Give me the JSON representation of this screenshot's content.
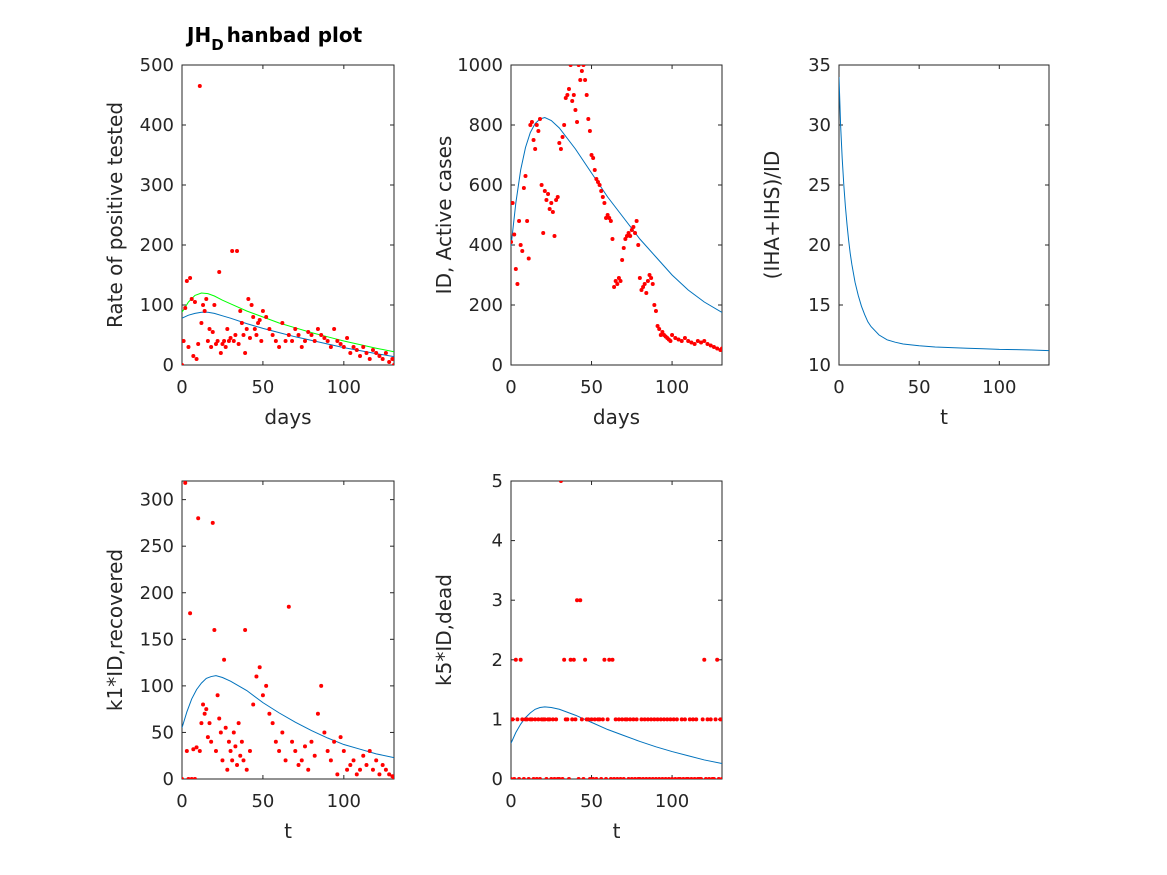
{
  "figure": {
    "title_main": "JH",
    "title_sub": "D",
    "title_rest": "hanbad plot"
  },
  "colors": {
    "points": "#ff0000",
    "fit": "#0072bd",
    "fit2": "#00ff00",
    "axis": "#262626"
  },
  "chart_data": [
    {
      "id": "p1",
      "type": "scatter",
      "xlabel": "days",
      "ylabel": "Rate of positive tested",
      "xlim": [
        0,
        131
      ],
      "ylim": [
        0,
        500
      ],
      "xticks": [
        0,
        50,
        100
      ],
      "yticks": [
        0,
        100,
        200,
        300,
        400,
        500
      ],
      "curves": [
        {
          "color": "#00ff00",
          "x": [
            0,
            4,
            8,
            12,
            16,
            20,
            25,
            30,
            40,
            50,
            60,
            70,
            80,
            90,
            100,
            110,
            120,
            131
          ],
          "y": [
            88,
            105,
            116,
            120,
            119,
            115,
            108,
            102,
            90,
            80,
            70,
            62,
            54,
            47,
            40,
            34,
            28,
            22
          ]
        },
        {
          "color": "#0072bd",
          "x": [
            0,
            4,
            8,
            12,
            16,
            20,
            25,
            30,
            40,
            50,
            60,
            70,
            80,
            90,
            100,
            110,
            120,
            131
          ],
          "y": [
            78,
            83,
            86,
            88,
            88,
            86,
            82,
            78,
            69,
            61,
            54,
            47,
            41,
            35,
            29,
            24,
            19,
            14
          ]
        }
      ],
      "points": {
        "x": [
          0,
          1,
          2,
          3,
          4,
          5,
          6,
          7,
          8,
          9,
          10,
          11,
          12,
          13,
          14,
          15,
          16,
          17,
          18,
          19,
          20,
          21,
          22,
          23,
          24,
          25,
          26,
          27,
          28,
          29,
          30,
          31,
          32,
          33,
          34,
          35,
          36,
          37,
          38,
          39,
          40,
          41,
          42,
          43,
          44,
          45,
          46,
          47,
          48,
          49,
          50,
          52,
          54,
          56,
          58,
          60,
          62,
          64,
          66,
          68,
          70,
          72,
          74,
          76,
          78,
          80,
          82,
          84,
          86,
          88,
          90,
          92,
          94,
          96,
          98,
          100,
          102,
          104,
          106,
          108,
          110,
          112,
          114,
          116,
          118,
          120,
          122,
          124,
          126,
          128,
          130,
          131
        ],
        "y": [
          0,
          40,
          95,
          140,
          30,
          145,
          110,
          15,
          105,
          10,
          35,
          465,
          70,
          100,
          90,
          110,
          40,
          60,
          30,
          55,
          100,
          35,
          40,
          155,
          20,
          35,
          40,
          30,
          60,
          40,
          45,
          190,
          40,
          50,
          190,
          35,
          90,
          70,
          50,
          20,
          60,
          110,
          45,
          100,
          80,
          60,
          50,
          70,
          75,
          40,
          90,
          80,
          60,
          50,
          40,
          30,
          70,
          40,
          50,
          40,
          60,
          50,
          30,
          40,
          55,
          50,
          40,
          60,
          50,
          45,
          40,
          30,
          60,
          40,
          35,
          30,
          45,
          20,
          30,
          25,
          15,
          30,
          20,
          10,
          25,
          20,
          15,
          10,
          20,
          5,
          10,
          0
        ]
      }
    },
    {
      "id": "p2",
      "type": "scatter",
      "xlabel": "days",
      "ylabel": "ID, Active cases",
      "xlim": [
        0,
        131
      ],
      "ylim": [
        0,
        1000
      ],
      "xticks": [
        0,
        50,
        100
      ],
      "yticks": [
        0,
        200,
        400,
        600,
        800,
        1000
      ],
      "curves": [
        {
          "color": "#0072bd",
          "x": [
            0,
            3,
            6,
            9,
            12,
            15,
            18,
            21,
            25,
            30,
            40,
            50,
            60,
            70,
            80,
            90,
            100,
            110,
            120,
            131
          ],
          "y": [
            395,
            540,
            650,
            725,
            775,
            805,
            820,
            825,
            815,
            790,
            720,
            640,
            560,
            490,
            420,
            360,
            300,
            250,
            210,
            175
          ]
        }
      ],
      "points": {
        "x": [
          0,
          1,
          2,
          3,
          4,
          5,
          6,
          7,
          8,
          9,
          10,
          11,
          12,
          13,
          14,
          15,
          16,
          17,
          18,
          19,
          20,
          21,
          22,
          23,
          24,
          25,
          26,
          27,
          28,
          29,
          30,
          31,
          32,
          33,
          34,
          35,
          36,
          37,
          38,
          39,
          40,
          41,
          42,
          43,
          44,
          45,
          46,
          47,
          48,
          49,
          50,
          51,
          52,
          53,
          54,
          55,
          56,
          57,
          58,
          59,
          60,
          61,
          62,
          63,
          64,
          65,
          66,
          67,
          68,
          69,
          70,
          71,
          72,
          73,
          74,
          75,
          76,
          77,
          78,
          79,
          80,
          81,
          82,
          83,
          84,
          85,
          86,
          87,
          88,
          89,
          90,
          91,
          92,
          93,
          94,
          95,
          96,
          97,
          98,
          99,
          100,
          102,
          104,
          106,
          108,
          110,
          112,
          114,
          116,
          118,
          120,
          122,
          124,
          126,
          128,
          130,
          131
        ],
        "y": [
          410,
          540,
          435,
          320,
          270,
          480,
          400,
          380,
          590,
          630,
          480,
          355,
          800,
          810,
          750,
          720,
          800,
          780,
          820,
          600,
          440,
          580,
          550,
          570,
          520,
          540,
          510,
          430,
          550,
          560,
          740,
          720,
          760,
          800,
          890,
          900,
          920,
          1000,
          880,
          900,
          850,
          810,
          1000,
          950,
          980,
          1000,
          950,
          900,
          820,
          780,
          700,
          690,
          650,
          620,
          610,
          600,
          580,
          560,
          540,
          490,
          500,
          490,
          480,
          420,
          260,
          280,
          270,
          290,
          280,
          350,
          390,
          420,
          430,
          440,
          430,
          450,
          460,
          440,
          480,
          400,
          290,
          250,
          260,
          270,
          240,
          280,
          300,
          290,
          270,
          200,
          180,
          130,
          120,
          100,
          110,
          100,
          95,
          90,
          85,
          80,
          100,
          90,
          85,
          80,
          90,
          80,
          75,
          70,
          80,
          75,
          80,
          70,
          65,
          60,
          55,
          50,
          55
        ]
      }
    },
    {
      "id": "p3",
      "type": "line",
      "xlabel": "t",
      "ylabel": "(IHA+IHS)/ID",
      "xlim": [
        0,
        131
      ],
      "ylim": [
        10,
        35
      ],
      "xticks": [
        0,
        50,
        100
      ],
      "yticks": [
        10,
        15,
        20,
        25,
        30,
        35
      ],
      "curves": [
        {
          "color": "#0072bd",
          "x": [
            0,
            1,
            2,
            3,
            4,
            5,
            6,
            7,
            8,
            10,
            12,
            14,
            16,
            18,
            20,
            25,
            30,
            35,
            40,
            50,
            60,
            70,
            80,
            90,
            100,
            110,
            120,
            131
          ],
          "y": [
            34,
            30,
            27.2,
            25,
            23.2,
            21.7,
            20.4,
            19.3,
            18.4,
            16.9,
            15.8,
            14.9,
            14.2,
            13.6,
            13.2,
            12.5,
            12.1,
            11.9,
            11.75,
            11.6,
            11.5,
            11.45,
            11.4,
            11.35,
            11.3,
            11.28,
            11.25,
            11.2
          ]
        }
      ],
      "points": {
        "x": [],
        "y": []
      }
    },
    {
      "id": "p4",
      "type": "scatter",
      "xlabel": "t",
      "ylabel": "k1*ID,recovered",
      "xlim": [
        0,
        131
      ],
      "ylim": [
        0,
        320
      ],
      "xticks": [
        0,
        50,
        100
      ],
      "yticks": [
        0,
        50,
        100,
        150,
        200,
        250,
        300
      ],
      "curves": [
        {
          "color": "#0072bd",
          "x": [
            0,
            3,
            6,
            9,
            12,
            15,
            18,
            21,
            25,
            30,
            40,
            50,
            60,
            70,
            80,
            90,
            100,
            110,
            120,
            131
          ],
          "y": [
            55,
            72,
            86,
            96,
            103,
            108,
            110,
            111,
            109,
            105,
            95,
            82,
            71,
            61,
            52,
            44,
            37,
            32,
            27,
            23
          ]
        }
      ],
      "points": {
        "x": [
          0,
          2,
          3,
          4,
          5,
          6,
          7,
          8,
          9,
          10,
          11,
          12,
          13,
          14,
          15,
          16,
          17,
          18,
          19,
          20,
          21,
          22,
          23,
          24,
          25,
          26,
          27,
          28,
          29,
          30,
          31,
          32,
          33,
          34,
          35,
          36,
          37,
          38,
          39,
          40,
          42,
          44,
          46,
          48,
          50,
          52,
          54,
          56,
          58,
          60,
          62,
          64,
          66,
          68,
          70,
          72,
          74,
          76,
          78,
          80,
          82,
          84,
          86,
          88,
          90,
          92,
          94,
          96,
          98,
          100,
          102,
          104,
          106,
          108,
          110,
          112,
          114,
          116,
          118,
          120,
          122,
          124,
          126,
          128,
          130,
          131
        ],
        "y": [
          0,
          318,
          30,
          0,
          178,
          0,
          32,
          0,
          34,
          280,
          30,
          60,
          80,
          70,
          75,
          45,
          60,
          40,
          275,
          160,
          30,
          90,
          65,
          50,
          20,
          128,
          55,
          10,
          40,
          30,
          20,
          50,
          35,
          15,
          60,
          25,
          40,
          20,
          160,
          10,
          30,
          80,
          110,
          120,
          90,
          100,
          70,
          60,
          40,
          30,
          50,
          20,
          185,
          40,
          30,
          15,
          20,
          35,
          10,
          40,
          25,
          70,
          100,
          50,
          30,
          20,
          40,
          5,
          45,
          30,
          10,
          15,
          20,
          5,
          10,
          25,
          15,
          30,
          10,
          20,
          5,
          15,
          10,
          5,
          3,
          0
        ]
      }
    },
    {
      "id": "p5",
      "type": "scatter",
      "xlabel": "t",
      "ylabel": "k5*ID,dead",
      "xlim": [
        0,
        131
      ],
      "ylim": [
        0,
        5
      ],
      "xticks": [
        0,
        50,
        100
      ],
      "yticks": [
        0,
        1,
        2,
        3,
        4,
        5
      ],
      "curves": [
        {
          "color": "#0072bd",
          "x": [
            0,
            3,
            6,
            9,
            12,
            15,
            18,
            21,
            25,
            30,
            40,
            50,
            60,
            70,
            80,
            90,
            100,
            110,
            120,
            131
          ],
          "y": [
            0.6,
            0.78,
            0.92,
            1.03,
            1.11,
            1.17,
            1.2,
            1.21,
            1.2,
            1.17,
            1.07,
            0.95,
            0.83,
            0.73,
            0.63,
            0.54,
            0.46,
            0.39,
            0.32,
            0.26
          ]
        }
      ],
      "points": {
        "x": [
          0,
          1,
          2,
          3,
          4,
          5,
          6,
          7,
          8,
          9,
          10,
          11,
          12,
          13,
          14,
          15,
          16,
          17,
          18,
          19,
          20,
          21,
          22,
          23,
          24,
          25,
          26,
          27,
          28,
          29,
          30,
          31,
          32,
          33,
          34,
          35,
          36,
          37,
          38,
          39,
          40,
          41,
          42,
          43,
          44,
          45,
          46,
          47,
          48,
          49,
          50,
          51,
          52,
          53,
          54,
          55,
          56,
          57,
          58,
          59,
          60,
          61,
          62,
          63,
          64,
          65,
          66,
          67,
          68,
          69,
          70,
          71,
          72,
          73,
          74,
          75,
          76,
          77,
          78,
          79,
          80,
          81,
          82,
          83,
          84,
          85,
          86,
          87,
          88,
          89,
          90,
          91,
          92,
          93,
          94,
          95,
          96,
          97,
          98,
          99,
          100,
          101,
          102,
          103,
          104,
          105,
          106,
          107,
          108,
          109,
          110,
          111,
          112,
          113,
          114,
          115,
          116,
          117,
          118,
          119,
          120,
          121,
          122,
          123,
          124,
          125,
          126,
          127,
          128,
          129,
          130,
          131
        ],
        "y": [
          0,
          1,
          0,
          2,
          1,
          0,
          2,
          1,
          0,
          1,
          1,
          0,
          1,
          1,
          0,
          1,
          0,
          1,
          0,
          1,
          1,
          1,
          0,
          1,
          1,
          0,
          1,
          0,
          1,
          0,
          0,
          5,
          0,
          2,
          1,
          1,
          0,
          2,
          1,
          2,
          1,
          3,
          0,
          3,
          1,
          0,
          2,
          1,
          1,
          0,
          1,
          0,
          1,
          0,
          1,
          1,
          0,
          1,
          2,
          0,
          1,
          2,
          0,
          2,
          0,
          1,
          0,
          1,
          0,
          1,
          0,
          1,
          1,
          0,
          1,
          0,
          1,
          0,
          1,
          0,
          0,
          1,
          0,
          1,
          0,
          1,
          0,
          1,
          0,
          1,
          0,
          1,
          0,
          1,
          0,
          1,
          0,
          1,
          0,
          1,
          0,
          1,
          0,
          1,
          0,
          0,
          1,
          0,
          1,
          0,
          0,
          1,
          0,
          1,
          0,
          1,
          0,
          0,
          0,
          1,
          2,
          0,
          1,
          0,
          1,
          0,
          0,
          1,
          2,
          0,
          1,
          0
        ]
      }
    }
  ]
}
